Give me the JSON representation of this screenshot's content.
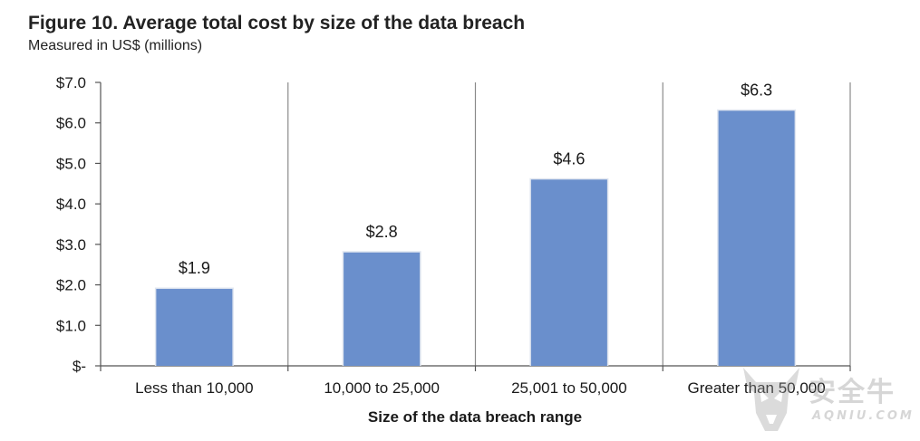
{
  "figure": {
    "title": "Figure 10. Average total cost by size of the data breach",
    "subtitle": "Measured in US$ (millions)"
  },
  "watermark": {
    "text_cn": "安全牛",
    "text_en": "AQNIU.COM"
  },
  "chart_data": {
    "type": "bar",
    "title": "Figure 10. Average total cost by size of the data breach",
    "subtitle": "Measured in US$ (millions)",
    "xlabel": "Size of the data breach range",
    "ylabel": "",
    "categories": [
      "Less than 10,000",
      "10,000 to 25,000",
      "25,001 to 50,000",
      "Greater than 50,000"
    ],
    "values": [
      1.9,
      2.8,
      4.6,
      6.3
    ],
    "data_labels": [
      "$1.9",
      "$2.8",
      "$4.6",
      "$6.3"
    ],
    "ylim": [
      0,
      7
    ],
    "yticks": [
      0,
      1,
      2,
      3,
      4,
      5,
      6,
      7
    ],
    "ytick_labels": [
      "$-",
      "$1.0",
      "$2.0",
      "$3.0",
      "$4.0",
      "$5.0",
      "$6.0",
      "$7.0"
    ],
    "bar_color": "#6a8fcc",
    "grid": "vertical separators between categories",
    "legend": "none"
  }
}
